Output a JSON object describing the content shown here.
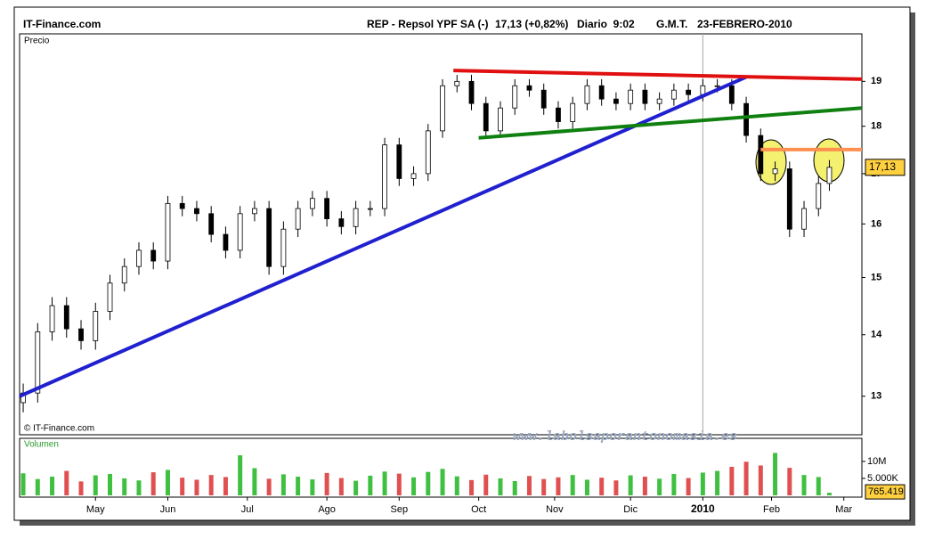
{
  "header": {
    "site": "IT-Finance.com",
    "symbol": "REP - Repsol YPF SA (-)",
    "quote": "17,13 (+0,82%)",
    "period": "Diario  9:02",
    "zone": "G.M.T.",
    "date": "23-FEBRERO-2010"
  },
  "chart_data": [
    {
      "type": "candlestick",
      "title": "Precio",
      "credit": "© IT-Finance.com",
      "watermark": "www.labolsaporantonomasia.es",
      "log_scale": true,
      "ylim": [
        12.41,
        20.12
      ],
      "yticks": [
        13,
        14,
        15,
        16,
        17,
        18,
        19
      ],
      "xlim": [
        0,
        233
      ],
      "xticks": [
        {
          "value": 21,
          "label": "May"
        },
        {
          "value": 41,
          "label": "Jun"
        },
        {
          "value": 63,
          "label": "Jul"
        },
        {
          "value": 85,
          "label": "Ago"
        },
        {
          "value": 105,
          "label": "Sep"
        },
        {
          "value": 127,
          "label": "Oct"
        },
        {
          "value": 148,
          "label": "Nov"
        },
        {
          "value": 169,
          "label": "Dic"
        },
        {
          "value": 189,
          "label": "2010"
        },
        {
          "value": 208,
          "label": "Feb"
        },
        {
          "value": 228,
          "label": "Mar"
        }
      ],
      "x": [
        1,
        5,
        9,
        13,
        17,
        21,
        25,
        29,
        33,
        37,
        41,
        45,
        49,
        53,
        57,
        61,
        65,
        69,
        73,
        77,
        81,
        85,
        89,
        93,
        97,
        101,
        105,
        109,
        113,
        117,
        121,
        125,
        129,
        133,
        137,
        141,
        145,
        149,
        153,
        157,
        161,
        165,
        169,
        173,
        177,
        181,
        185,
        189,
        193,
        197,
        201,
        205,
        209,
        213,
        217,
        221,
        224
      ],
      "open": [
        12.9,
        13.05,
        14.05,
        14.5,
        14.1,
        13.9,
        14.4,
        14.9,
        15.2,
        15.5,
        15.3,
        16.4,
        16.3,
        16.2,
        15.8,
        15.5,
        16.2,
        16.3,
        15.2,
        15.9,
        16.3,
        16.5,
        16.1,
        15.95,
        16.3,
        16.3,
        17.6,
        16.9,
        17.0,
        17.9,
        18.9,
        19.0,
        18.5,
        17.9,
        18.4,
        18.9,
        18.8,
        18.4,
        18.1,
        18.5,
        18.9,
        18.6,
        18.5,
        18.8,
        18.5,
        18.6,
        18.8,
        18.7,
        18.9,
        18.9,
        18.5,
        17.8,
        17.0,
        17.1,
        15.9,
        16.3,
        16.8
      ],
      "high": [
        13.2,
        14.2,
        14.65,
        14.65,
        14.25,
        14.55,
        15.05,
        15.35,
        15.65,
        15.65,
        16.55,
        16.55,
        16.45,
        16.35,
        15.95,
        16.35,
        16.45,
        16.45,
        16.05,
        16.45,
        16.65,
        16.65,
        16.25,
        16.45,
        16.45,
        17.75,
        17.75,
        17.15,
        18.05,
        19.05,
        19.15,
        19.15,
        18.65,
        18.55,
        19.05,
        19.05,
        18.95,
        18.55,
        18.65,
        19.05,
        19.05,
        18.75,
        18.95,
        18.95,
        18.75,
        18.95,
        18.95,
        19.05,
        19.05,
        19.05,
        18.65,
        17.95,
        17.25,
        17.25,
        16.45,
        16.95,
        17.28
      ],
      "low": [
        12.75,
        12.9,
        13.9,
        13.95,
        13.75,
        13.75,
        14.25,
        14.75,
        15.05,
        15.15,
        15.15,
        16.15,
        16.05,
        15.65,
        15.35,
        15.35,
        16.05,
        15.05,
        15.05,
        15.75,
        16.15,
        15.95,
        15.8,
        15.8,
        16.15,
        16.15,
        16.75,
        16.75,
        16.85,
        17.75,
        18.75,
        18.35,
        17.75,
        17.75,
        18.25,
        18.65,
        18.25,
        17.95,
        17.95,
        18.35,
        18.45,
        18.35,
        18.35,
        18.35,
        18.35,
        18.45,
        18.55,
        18.55,
        18.75,
        18.35,
        17.65,
        16.85,
        16.85,
        15.75,
        15.75,
        16.15,
        16.65
      ],
      "close": [
        13.05,
        14.05,
        14.5,
        14.1,
        13.9,
        14.4,
        14.9,
        15.2,
        15.5,
        15.3,
        16.4,
        16.3,
        16.2,
        15.8,
        15.5,
        16.2,
        16.3,
        15.2,
        15.9,
        16.3,
        16.5,
        16.1,
        15.95,
        16.3,
        16.3,
        17.6,
        16.9,
        17.0,
        17.9,
        18.9,
        19.0,
        18.5,
        17.9,
        18.4,
        18.9,
        18.8,
        18.4,
        18.1,
        18.5,
        18.9,
        18.6,
        18.5,
        18.8,
        18.5,
        18.6,
        18.8,
        18.7,
        18.9,
        18.9,
        18.5,
        17.8,
        17.0,
        17.1,
        15.9,
        16.3,
        16.8,
        17.13
      ],
      "last_price": {
        "value": 17.13,
        "label": "17,13"
      },
      "trendlines": [
        {
          "color": "#2020d0",
          "x": [
            0,
            201
          ],
          "y": [
            13.0,
            19.1
          ]
        },
        {
          "color": "#e01010",
          "x": [
            120,
            233
          ],
          "y": [
            19.25,
            19.05
          ]
        },
        {
          "color": "#108010",
          "x": [
            127,
            233
          ],
          "y": [
            17.75,
            18.4
          ]
        },
        {
          "color": "#ff9050",
          "x": [
            205,
            233
          ],
          "y": [
            17.5,
            17.5
          ]
        }
      ]
    },
    {
      "type": "bar",
      "title": "Volumen",
      "up_color": "#40c040",
      "down_color": "#e05050",
      "ylim": [
        0,
        16.8
      ],
      "yticks": [
        {
          "value": 10,
          "label": "10M"
        },
        {
          "value": 5,
          "label": "5.000K"
        }
      ],
      "values": [
        6.5,
        4.8,
        5.5,
        7.2,
        4.1,
        5.9,
        6.3,
        5.0,
        4.4,
        6.8,
        7.5,
        5.2,
        4.6,
        6.0,
        5.4,
        11.8,
        8.0,
        4.9,
        6.2,
        5.5,
        4.7,
        6.6,
        5.1,
        4.3,
        5.8,
        7.0,
        6.4,
        5.3,
        6.9,
        7.8,
        5.6,
        4.5,
        6.1,
        5.0,
        4.2,
        5.7,
        4.8,
        5.3,
        6.0,
        4.6,
        5.2,
        4.4,
        5.9,
        5.5,
        4.9,
        6.3,
        5.1,
        6.7,
        7.2,
        8.4,
        9.9,
        8.8,
        12.5,
        8.1,
        6.0,
        5.4,
        0.765419
      ],
      "last_volume": {
        "value": 0.765419,
        "label": "765.419"
      }
    }
  ]
}
